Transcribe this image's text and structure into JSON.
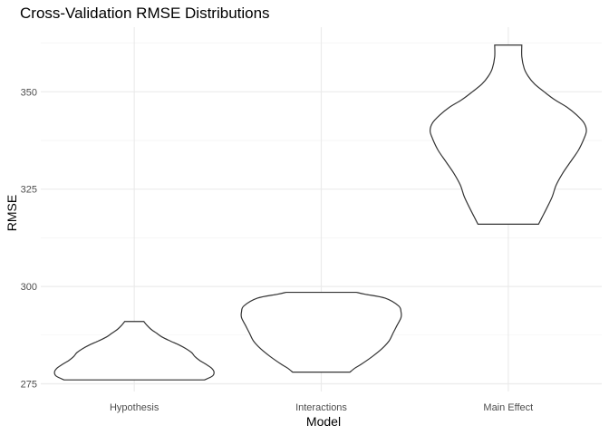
{
  "chart_data": {
    "type": "violin",
    "title": "Cross-Validation RMSE Distributions",
    "xlabel": "Model",
    "ylabel": "RMSE",
    "categories": [
      "Hypothesis",
      "Interactions",
      "Main Effect"
    ],
    "ylim": [
      273,
      363
    ],
    "yticks": [
      275,
      300,
      325,
      350
    ],
    "ytick_labels": [
      "275",
      "300",
      "325",
      "350"
    ],
    "grid": true,
    "violins": [
      {
        "category": "Hypothesis",
        "min": 276,
        "max": 291,
        "profile": [
          [
            276.0,
            0.88
          ],
          [
            277.0,
            0.98
          ],
          [
            278.0,
            1.0
          ],
          [
            279.0,
            0.97
          ],
          [
            280.0,
            0.9
          ],
          [
            281.0,
            0.82
          ],
          [
            282.0,
            0.76
          ],
          [
            283.0,
            0.72
          ],
          [
            284.0,
            0.65
          ],
          [
            285.0,
            0.56
          ],
          [
            286.0,
            0.45
          ],
          [
            287.0,
            0.35
          ],
          [
            288.0,
            0.28
          ],
          [
            289.0,
            0.21
          ],
          [
            290.0,
            0.16
          ],
          [
            291.0,
            0.12
          ]
        ]
      },
      {
        "category": "Interactions",
        "min": 278,
        "max": 298.5,
        "profile": [
          [
            278.0,
            0.36
          ],
          [
            279.0,
            0.42
          ],
          [
            280.0,
            0.5
          ],
          [
            282.0,
            0.64
          ],
          [
            284.0,
            0.76
          ],
          [
            286.0,
            0.85
          ],
          [
            288.0,
            0.9
          ],
          [
            290.0,
            0.95
          ],
          [
            292.0,
            1.0
          ],
          [
            293.5,
            1.0
          ],
          [
            295.0,
            0.97
          ],
          [
            297.0,
            0.8
          ],
          [
            298.0,
            0.55
          ],
          [
            298.5,
            0.44
          ]
        ]
      },
      {
        "category": "Main Effect",
        "min": 316,
        "max": 362,
        "profile": [
          [
            316.0,
            0.38
          ],
          [
            318.0,
            0.43
          ],
          [
            320.0,
            0.48
          ],
          [
            323.0,
            0.55
          ],
          [
            326.0,
            0.6
          ],
          [
            329.0,
            0.68
          ],
          [
            332.0,
            0.78
          ],
          [
            335.0,
            0.88
          ],
          [
            338.0,
            0.95
          ],
          [
            340.0,
            0.98
          ],
          [
            342.0,
            0.95
          ],
          [
            344.0,
            0.86
          ],
          [
            346.0,
            0.74
          ],
          [
            348.0,
            0.58
          ],
          [
            350.0,
            0.45
          ],
          [
            352.0,
            0.33
          ],
          [
            354.0,
            0.25
          ],
          [
            356.0,
            0.2
          ],
          [
            359.0,
            0.17
          ],
          [
            362.0,
            0.17
          ]
        ]
      }
    ]
  }
}
